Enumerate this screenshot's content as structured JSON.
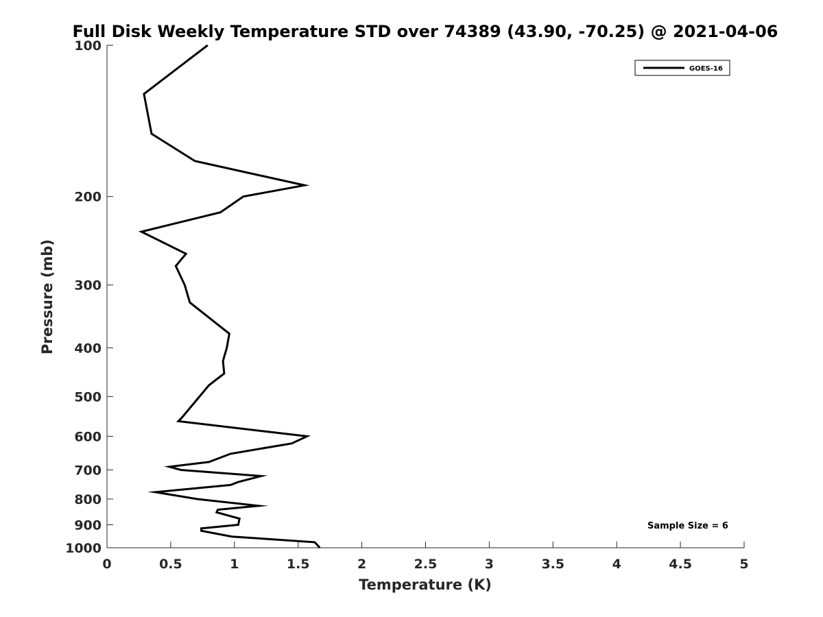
{
  "chart_data": {
    "type": "line",
    "title": "Full Disk Weekly Temperature STD over 74389 (43.90, -70.25) @ 2021-04-06",
    "xlabel": "Temperature (K)",
    "ylabel": "Pressure (mb)",
    "xlim": [
      0,
      5
    ],
    "ylim": [
      100,
      1000
    ],
    "y_scale": "log",
    "y_reversed": true,
    "x_ticks": [
      "0",
      "0.5",
      "1",
      "1.5",
      "2",
      "2.5",
      "3",
      "3.5",
      "4",
      "4.5",
      "5"
    ],
    "y_ticks": [
      "100",
      "200",
      "300",
      "400",
      "500",
      "600",
      "700",
      "800",
      "900",
      "1000"
    ],
    "legend_position": "top-right",
    "series": [
      {
        "name": "GOES-16",
        "color": "#000000",
        "points": [
          [
            0.79,
            100
          ],
          [
            0.29,
            125
          ],
          [
            0.35,
            150
          ],
          [
            0.69,
            170
          ],
          [
            1.55,
            190
          ],
          [
            1.07,
            200
          ],
          [
            0.89,
            215
          ],
          [
            0.27,
            235
          ],
          [
            0.62,
            260
          ],
          [
            0.54,
            275
          ],
          [
            0.61,
            300
          ],
          [
            0.65,
            325
          ],
          [
            0.96,
            375
          ],
          [
            0.94,
            400
          ],
          [
            0.91,
            425
          ],
          [
            0.92,
            450
          ],
          [
            0.8,
            475
          ],
          [
            0.59,
            550
          ],
          [
            0.56,
            560
          ],
          [
            1.57,
            600
          ],
          [
            1.45,
            620
          ],
          [
            0.97,
            650
          ],
          [
            0.8,
            675
          ],
          [
            0.49,
            690
          ],
          [
            0.58,
            700
          ],
          [
            1.21,
            720
          ],
          [
            1.03,
            740
          ],
          [
            0.97,
            750
          ],
          [
            0.38,
            775
          ],
          [
            0.71,
            800
          ],
          [
            1.19,
            825
          ],
          [
            0.87,
            840
          ],
          [
            0.86,
            850
          ],
          [
            1.04,
            875
          ],
          [
            1.03,
            900
          ],
          [
            0.74,
            915
          ],
          [
            0.74,
            925
          ],
          [
            0.98,
            950
          ],
          [
            1.63,
            975
          ],
          [
            1.67,
            1000
          ]
        ]
      }
    ],
    "annotations": [
      "Sample Size = 6"
    ]
  }
}
